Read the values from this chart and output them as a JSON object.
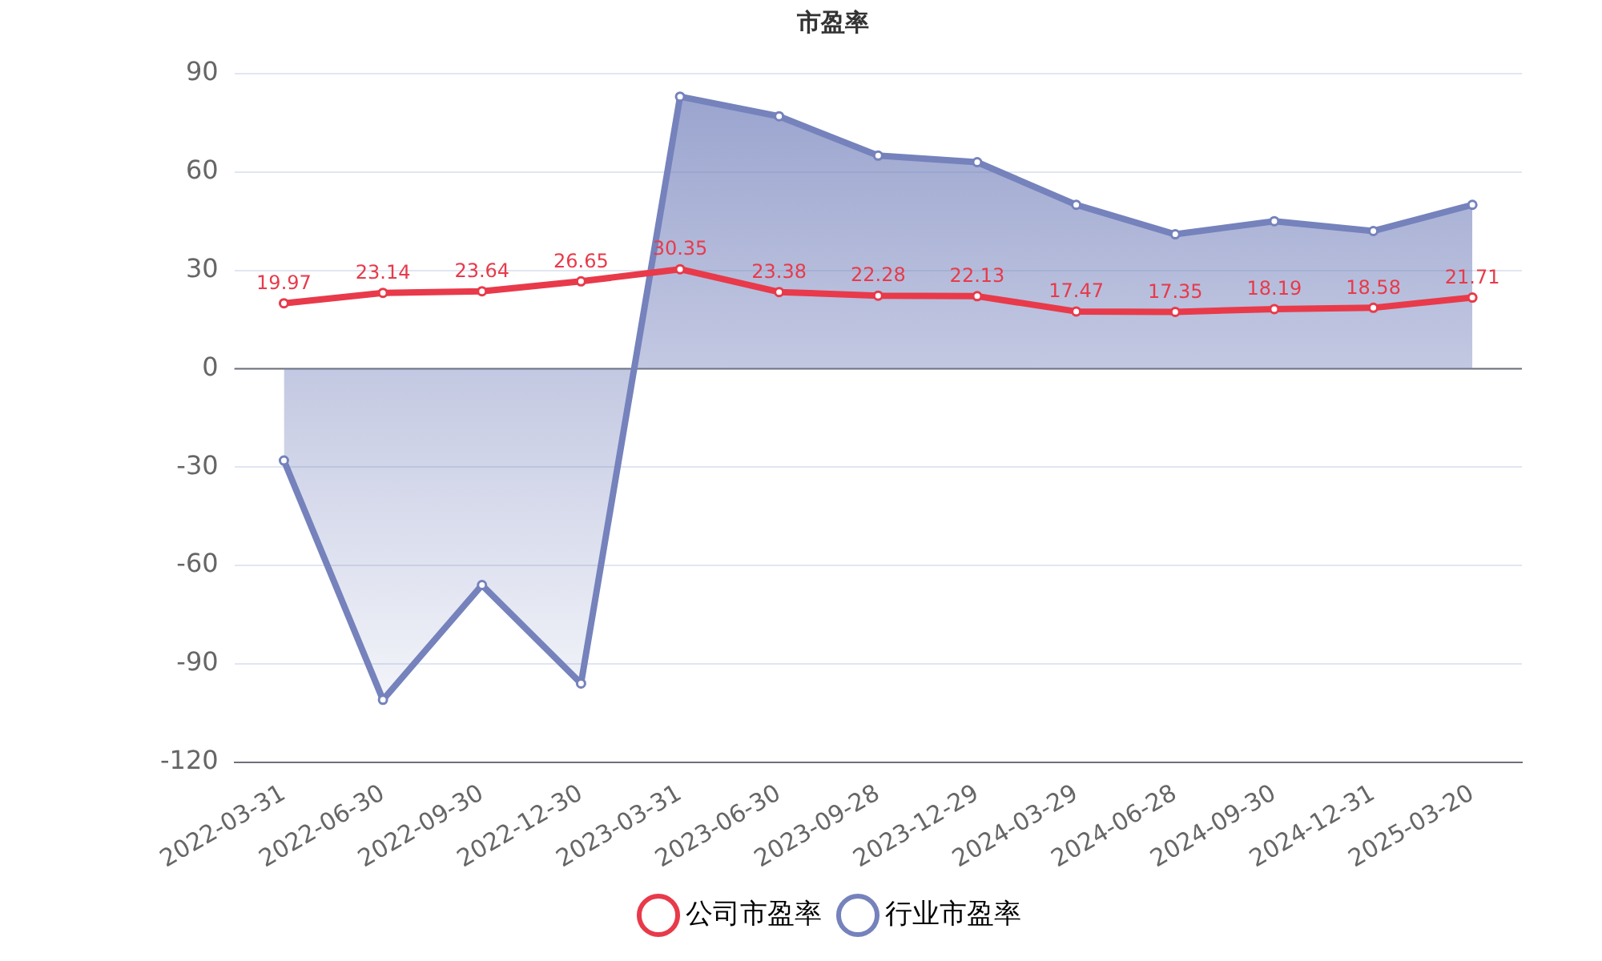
{
  "chart_data": {
    "type": "line",
    "title": "市盈率",
    "categories": [
      "2022-03-31",
      "2022-06-30",
      "2022-09-30",
      "2022-12-30",
      "2023-03-31",
      "2023-06-30",
      "2023-09-28",
      "2023-12-29",
      "2024-03-29",
      "2024-06-28",
      "2024-09-30",
      "2024-12-31",
      "2025-03-20"
    ],
    "series": [
      {
        "name": "公司市盈率",
        "color": "#e83a4a",
        "values": [
          19.97,
          23.14,
          23.64,
          26.65,
          30.35,
          23.38,
          22.28,
          22.13,
          17.47,
          17.35,
          18.19,
          18.58,
          21.71
        ],
        "data_labels": true
      },
      {
        "name": "行业市盈率",
        "type": "area",
        "color": "#7582bc",
        "values": [
          -28,
          -101,
          -66,
          -96,
          83,
          77,
          65,
          63,
          50,
          41,
          45,
          42,
          50
        ]
      }
    ],
    "ylim": [
      -120,
      90
    ],
    "yticks": [
      -120,
      -90,
      -60,
      -30,
      0,
      30,
      60,
      90
    ],
    "grid": "y",
    "legend": "bottom",
    "marker": "circle"
  }
}
